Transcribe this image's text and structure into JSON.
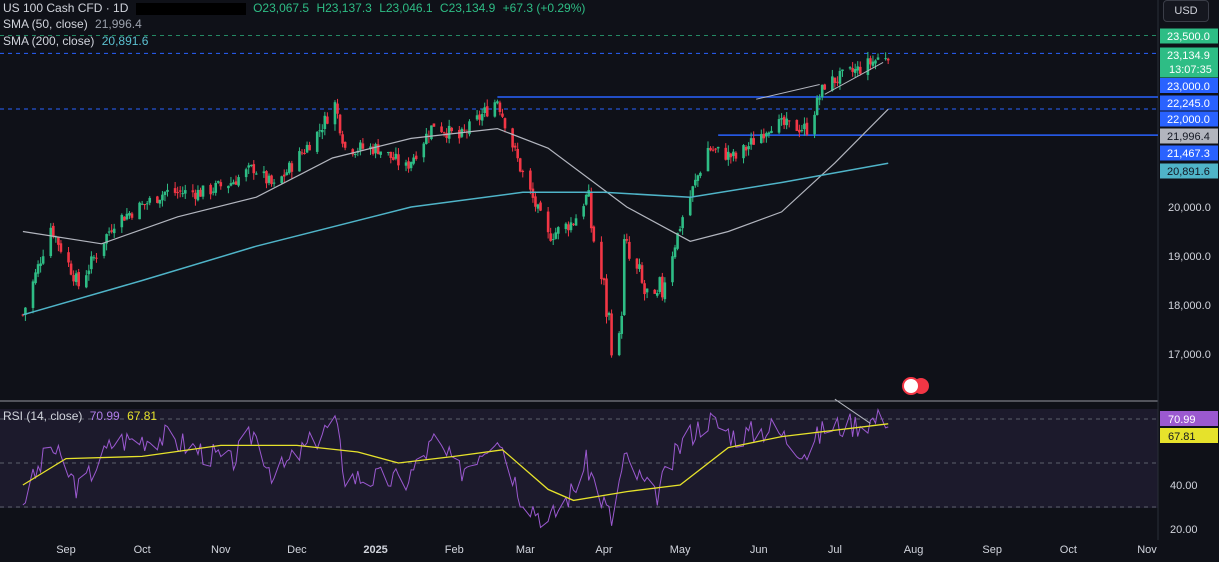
{
  "header": {
    "symbol": "US 100 Cash CFD · 1D",
    "open": "O23,067.5",
    "high": "H23,137.3",
    "low": "L23,046.1",
    "close": "C23,134.9",
    "change": "+67.3 (+0.29%)"
  },
  "legend": {
    "sma50_label": "SMA (50, close)",
    "sma50_value": "21,996.4",
    "sma200_label": "SMA (200, close)",
    "sma200_value": "20,891.6",
    "rsi_label": "RSI (14, close)",
    "rsi_value": "70.99",
    "rsi_ma_value": "67.81"
  },
  "currency": "USD",
  "countdown": "13:07:35",
  "colors": {
    "bg": "#0f1118",
    "up": "#2ebd85",
    "down": "#f23645",
    "sma50": "#b2b5be",
    "sma200": "#4fb4c8",
    "rsi": "#9b59d0",
    "rsi_ma": "#e6e22b",
    "level_line": "#2962ff"
  },
  "chart_data": {
    "type": "candlestick",
    "symbol": "US 100 Cash CFD",
    "interval": "1D",
    "xlabel": "",
    "ylabel": "",
    "x_ticks": [
      "Sep",
      "Oct",
      "Nov",
      "Dec",
      "2025",
      "Feb",
      "Mar",
      "Apr",
      "May",
      "Jun",
      "Jul",
      "Aug",
      "Sep",
      "Oct",
      "Nov"
    ],
    "y_ticks": [
      "17,000.0",
      "18,000.0",
      "19,000.0",
      "20,000.0",
      "22,000.0",
      "23,000.0",
      "23,500.0"
    ],
    "ylim": [
      16100,
      23600
    ],
    "close_path": [
      {
        "date": "2024-08-15",
        "close": 17800
      },
      {
        "date": "2024-08-26",
        "close": 19600
      },
      {
        "date": "2024-09-06",
        "close": 18400
      },
      {
        "date": "2024-09-20",
        "close": 19700
      },
      {
        "date": "2024-10-10",
        "close": 20300
      },
      {
        "date": "2024-10-25",
        "close": 20300
      },
      {
        "date": "2024-11-05",
        "close": 20500
      },
      {
        "date": "2024-11-14",
        "close": 20800
      },
      {
        "date": "2024-11-22",
        "close": 20400
      },
      {
        "date": "2024-12-09",
        "close": 21500
      },
      {
        "date": "2024-12-16",
        "close": 22100
      },
      {
        "date": "2024-12-20",
        "close": 21200
      },
      {
        "date": "2025-01-02",
        "close": 21200
      },
      {
        "date": "2025-01-13",
        "close": 20800
      },
      {
        "date": "2025-01-24",
        "close": 21700
      },
      {
        "date": "2025-02-03",
        "close": 21400
      },
      {
        "date": "2025-02-18",
        "close": 22200
      },
      {
        "date": "2025-02-27",
        "close": 20800
      },
      {
        "date": "2025-03-10",
        "close": 19400
      },
      {
        "date": "2025-03-20",
        "close": 19700
      },
      {
        "date": "2025-03-25",
        "close": 20200
      },
      {
        "date": "2025-04-04",
        "close": 17400
      },
      {
        "date": "2025-04-07",
        "close": 17100
      },
      {
        "date": "2025-04-09",
        "close": 19100
      },
      {
        "date": "2025-04-21",
        "close": 17800
      },
      {
        "date": "2025-05-02",
        "close": 19800
      },
      {
        "date": "2025-05-12",
        "close": 21200
      },
      {
        "date": "2025-05-23",
        "close": 21000
      },
      {
        "date": "2025-06-06",
        "close": 21700
      },
      {
        "date": "2025-06-20",
        "close": 21600
      },
      {
        "date": "2025-06-27",
        "close": 22500
      },
      {
        "date": "2025-07-10",
        "close": 22800
      },
      {
        "date": "2025-07-22",
        "close": 23134.9
      }
    ],
    "series": [
      {
        "name": "SMA (50, close)",
        "last": 21996.4,
        "points": [
          {
            "date": "2024-08-15",
            "value": 19500
          },
          {
            "date": "2024-09-15",
            "value": 19250
          },
          {
            "date": "2024-10-15",
            "value": 19800
          },
          {
            "date": "2024-11-15",
            "value": 20200
          },
          {
            "date": "2024-12-15",
            "value": 21000
          },
          {
            "date": "2025-01-15",
            "value": 21400
          },
          {
            "date": "2025-02-18",
            "value": 21600
          },
          {
            "date": "2025-03-10",
            "value": 21200
          },
          {
            "date": "2025-04-10",
            "value": 20000
          },
          {
            "date": "2025-05-05",
            "value": 19300
          },
          {
            "date": "2025-05-20",
            "value": 19500
          },
          {
            "date": "2025-06-10",
            "value": 19900
          },
          {
            "date": "2025-07-01",
            "value": 20900
          },
          {
            "date": "2025-07-22",
            "value": 21996.4
          }
        ]
      },
      {
        "name": "SMA (200, close)",
        "last": 20891.6,
        "points": [
          {
            "date": "2024-08-15",
            "value": 17800
          },
          {
            "date": "2024-10-01",
            "value": 18500
          },
          {
            "date": "2024-11-15",
            "value": 19200
          },
          {
            "date": "2025-01-15",
            "value": 20000
          },
          {
            "date": "2025-02-28",
            "value": 20300
          },
          {
            "date": "2025-04-01",
            "value": 20300
          },
          {
            "date": "2025-05-05",
            "value": 20200
          },
          {
            "date": "2025-06-10",
            "value": 20500
          },
          {
            "date": "2025-07-22",
            "value": 20891.6
          }
        ]
      }
    ],
    "horizontal_levels": [
      22245.0,
      21467.3
    ],
    "price_labels": [
      {
        "text": "23,500.0",
        "kind": "accent"
      },
      {
        "text": "23,134.9",
        "kind": "last"
      },
      {
        "text": "22,245.0",
        "kind": "level"
      },
      {
        "text": "22,000.0",
        "kind": "level"
      },
      {
        "text": "21,996.4",
        "kind": "sma50"
      },
      {
        "text": "21,467.3",
        "kind": "level"
      },
      {
        "text": "20,891.6",
        "kind": "sma200"
      }
    ],
    "rsi": {
      "name": "RSI (14, close)",
      "ylim": [
        15,
        80
      ],
      "y_ticks": [
        "20.00",
        "40.00"
      ],
      "bands": [
        70,
        50,
        30
      ],
      "current": 70.99,
      "ma_current": 67.81,
      "values": [
        {
          "date": "2024-08-15",
          "rsi": 33
        },
        {
          "date": "2024-08-26",
          "rsi": 58
        },
        {
          "date": "2024-09-06",
          "rsi": 38
        },
        {
          "date": "2024-09-20",
          "rsi": 60
        },
        {
          "date": "2024-10-10",
          "rsi": 62
        },
        {
          "date": "2024-11-05",
          "rsi": 50
        },
        {
          "date": "2024-11-14",
          "rsi": 64
        },
        {
          "date": "2024-11-22",
          "rsi": 44
        },
        {
          "date": "2024-12-16",
          "rsi": 69
        },
        {
          "date": "2024-12-20",
          "rsi": 44
        },
        {
          "date": "2025-01-13",
          "rsi": 42
        },
        {
          "date": "2025-01-24",
          "rsi": 60
        },
        {
          "date": "2025-02-03",
          "rsi": 46
        },
        {
          "date": "2025-02-18",
          "rsi": 64
        },
        {
          "date": "2025-02-27",
          "rsi": 36
        },
        {
          "date": "2025-03-10",
          "rsi": 23
        },
        {
          "date": "2025-03-20",
          "rsi": 38
        },
        {
          "date": "2025-03-25",
          "rsi": 50
        },
        {
          "date": "2025-04-04",
          "rsi": 24
        },
        {
          "date": "2025-04-09",
          "rsi": 52
        },
        {
          "date": "2025-04-21",
          "rsi": 34
        },
        {
          "date": "2025-05-02",
          "rsi": 60
        },
        {
          "date": "2025-05-12",
          "rsi": 70
        },
        {
          "date": "2025-05-23",
          "rsi": 62
        },
        {
          "date": "2025-06-06",
          "rsi": 66
        },
        {
          "date": "2025-06-20",
          "rsi": 55
        },
        {
          "date": "2025-06-27",
          "rsi": 66
        },
        {
          "date": "2025-07-10",
          "rsi": 68
        },
        {
          "date": "2025-07-22",
          "rsi": 70.99
        }
      ],
      "ma": [
        {
          "date": "2024-08-15",
          "value": 40
        },
        {
          "date": "2024-09-01",
          "value": 52
        },
        {
          "date": "2024-10-01",
          "value": 53
        },
        {
          "date": "2024-11-01",
          "value": 58
        },
        {
          "date": "2024-12-01",
          "value": 58
        },
        {
          "date": "2024-12-25",
          "value": 55
        },
        {
          "date": "2025-01-10",
          "value": 50
        },
        {
          "date": "2025-02-01",
          "value": 53
        },
        {
          "date": "2025-02-20",
          "value": 56
        },
        {
          "date": "2025-03-10",
          "value": 38
        },
        {
          "date": "2025-03-20",
          "value": 33
        },
        {
          "date": "2025-04-10",
          "value": 37
        },
        {
          "date": "2025-05-01",
          "value": 40
        },
        {
          "date": "2025-05-20",
          "value": 57
        },
        {
          "date": "2025-06-10",
          "value": 62
        },
        {
          "date": "2025-07-22",
          "value": 67.81
        }
      ]
    }
  }
}
